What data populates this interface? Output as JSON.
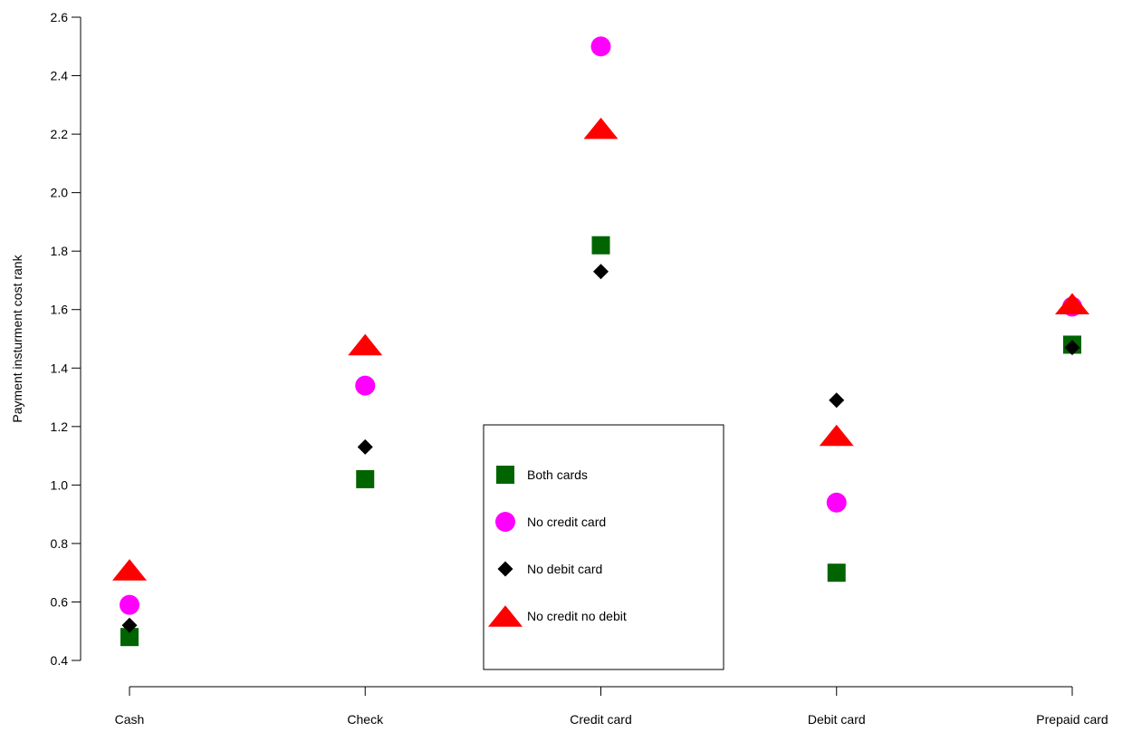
{
  "chart_data": {
    "type": "scatter",
    "title": "",
    "xlabel": "",
    "ylabel": "Payment insturment cost rank",
    "categories": [
      "Cash",
      "Check",
      "Credit card",
      "Debit card",
      "Prepaid card"
    ],
    "ylim": [
      0.4,
      2.6
    ],
    "yticks": [
      0.4,
      0.6,
      0.8,
      1.0,
      1.2,
      1.4,
      1.6,
      1.8,
      2.0,
      2.2,
      2.4,
      2.6
    ],
    "ytick_labels": [
      "0.4",
      "0.6",
      "0.8",
      "1.0",
      "1.2",
      "1.4",
      "1.6",
      "1.8",
      "2.0",
      "2.2",
      "2.4",
      "2.6"
    ],
    "grid": false,
    "legend_position": "bottom-center",
    "series": [
      {
        "name": "Both cards",
        "marker": "square",
        "color": "#006400",
        "values": [
          0.48,
          1.02,
          1.82,
          0.7,
          1.48
        ]
      },
      {
        "name": "No credit card",
        "marker": "circle",
        "color": "#ff00ff",
        "values": [
          0.59,
          1.34,
          2.5,
          0.94,
          1.61
        ]
      },
      {
        "name": "No debit card",
        "marker": "diamond",
        "color": "#000000",
        "values": [
          0.52,
          1.13,
          1.73,
          1.29,
          1.47
        ]
      },
      {
        "name": "No credit no debit",
        "marker": "triangle",
        "color": "#ff0000",
        "values": [
          0.71,
          1.48,
          2.22,
          1.17,
          1.62
        ]
      }
    ]
  }
}
